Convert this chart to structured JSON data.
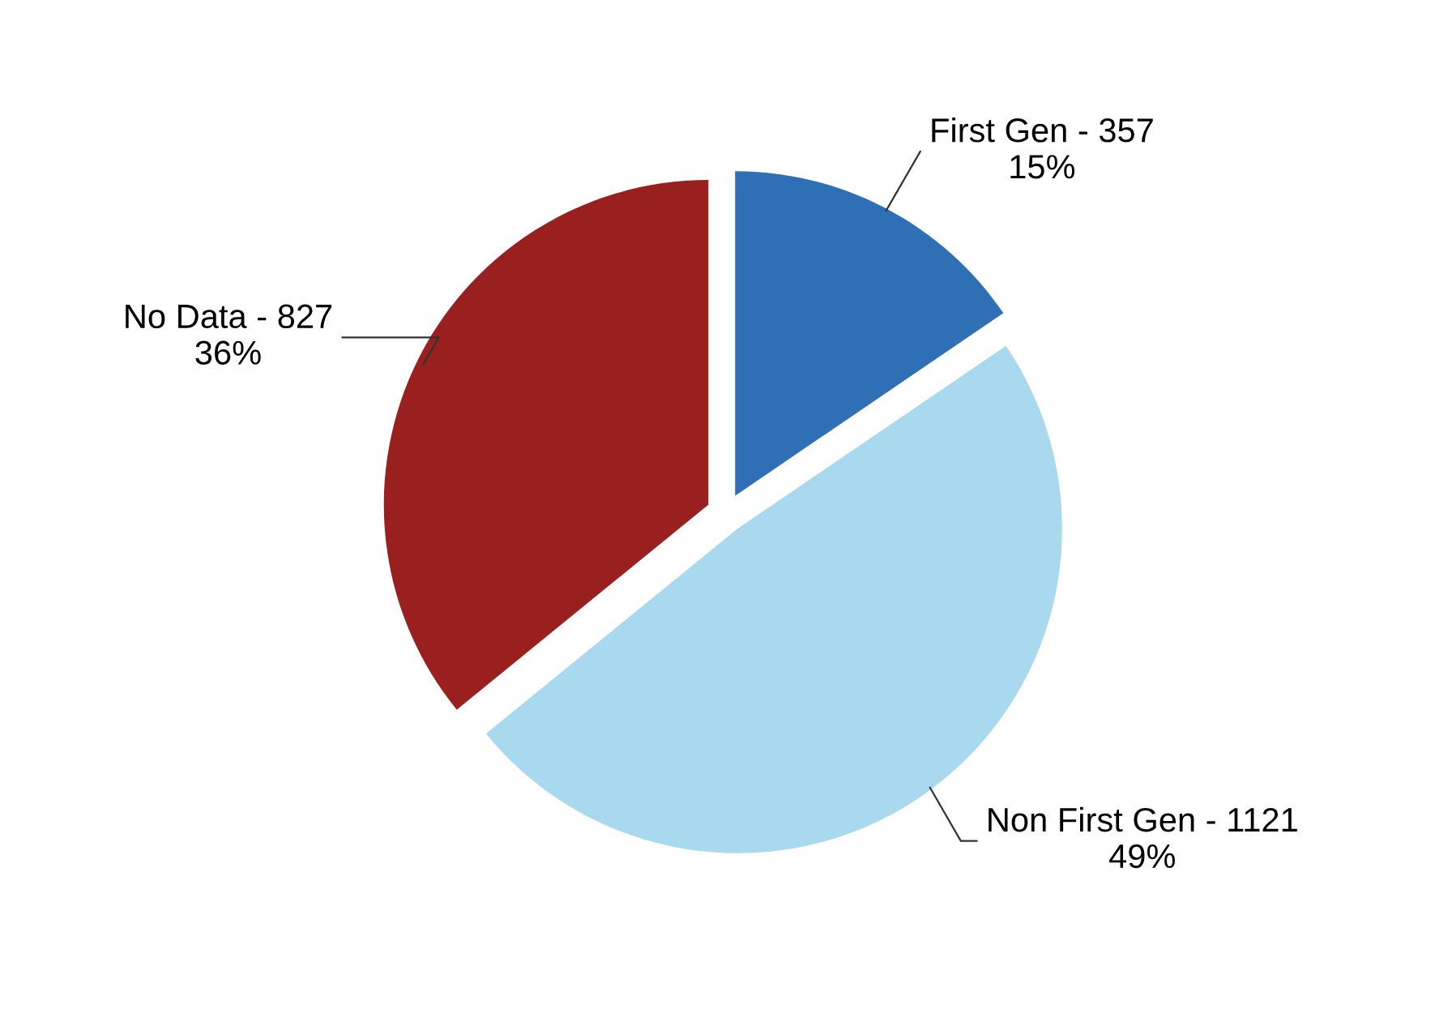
{
  "chart_data": {
    "type": "pie",
    "categories": [
      "First Gen",
      "Non First Gen",
      "No Data"
    ],
    "values": [
      357,
      1121,
      827
    ],
    "colors": [
      "#2f6fb5",
      "#a9d9ef",
      "#9a1f1f"
    ],
    "value_labels": [
      "357\n15%",
      "1121\n49%",
      "827\n36%"
    ]
  }
}
